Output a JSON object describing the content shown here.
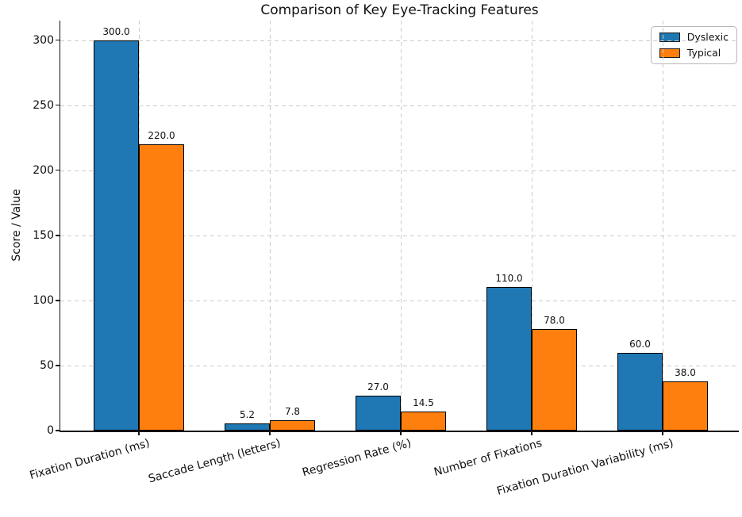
{
  "chart_data": {
    "type": "bar",
    "title": "Comparison of Key Eye-Tracking Features",
    "ylabel": "Score / Value",
    "xlabel": "",
    "categories": [
      "Fixation Duration (ms)",
      "Saccade Length (letters)",
      "Regression Rate (%)",
      "Number of Fixations",
      "Fixation Duration Variability (ms)"
    ],
    "series": [
      {
        "name": "Dyslexic",
        "color": "#1f77b4",
        "values": [
          300.0,
          5.2,
          27.0,
          110.0,
          60.0
        ]
      },
      {
        "name": "Typical",
        "color": "#ff7f0e",
        "values": [
          220.0,
          7.8,
          14.5,
          78.0,
          38.0
        ]
      }
    ],
    "value_labels": [
      [
        "300.0",
        "5.2",
        "27.0",
        "110.0",
        "60.0"
      ],
      [
        "220.0",
        "7.8",
        "14.5",
        "78.0",
        "38.0"
      ]
    ],
    "bar_edge_color": "#000000",
    "yticks": [
      0,
      50,
      100,
      150,
      200,
      250,
      300
    ],
    "ylim": [
      0,
      315
    ],
    "grid": "both-dashed",
    "grid_color": "#cbcbcb",
    "xtick_rotation_deg": 15.5,
    "legend_position": "upper-right"
  }
}
